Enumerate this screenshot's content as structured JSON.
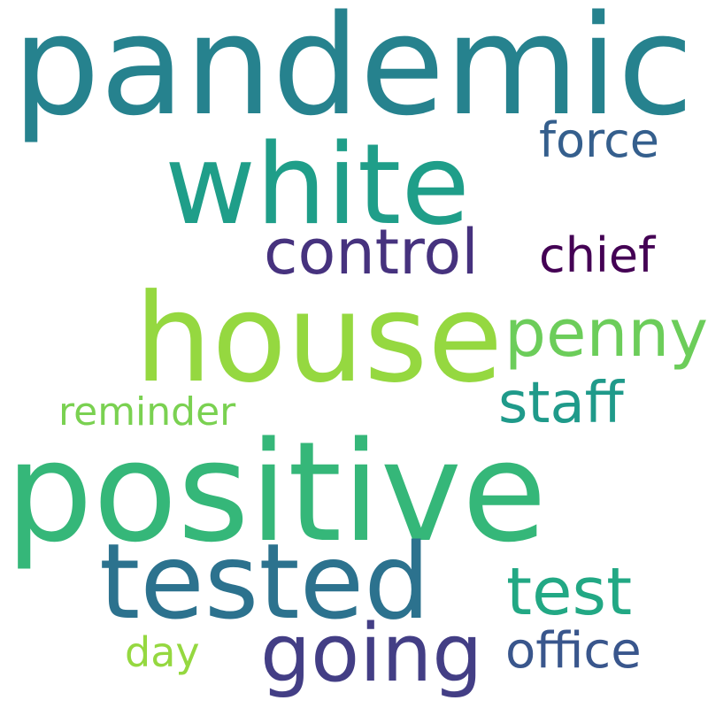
{
  "words": {
    "pandemic": {
      "text": "pandemic",
      "color": "#26828e"
    },
    "white": {
      "text": "white",
      "color": "#1f9e89"
    },
    "force": {
      "text": "force",
      "color": "#355f8d"
    },
    "control": {
      "text": "control",
      "color": "#46327e"
    },
    "chief": {
      "text": "chief",
      "color": "#440154"
    },
    "house": {
      "text": "house",
      "color": "#95d840"
    },
    "penny": {
      "text": "penny",
      "color": "#6ccd5a"
    },
    "staff": {
      "text": "staff",
      "color": "#1f9a8a"
    },
    "reminder": {
      "text": "reminder",
      "color": "#7ad151"
    },
    "positive": {
      "text": "positive",
      "color": "#35b779"
    },
    "tested": {
      "text": "tested",
      "color": "#2c728e"
    },
    "test": {
      "text": "test",
      "color": "#22a884"
    },
    "going": {
      "text": "going",
      "color": "#433e85"
    },
    "office": {
      "text": "office",
      "color": "#39568c"
    },
    "day": {
      "text": "day",
      "color": "#95d840"
    }
  }
}
